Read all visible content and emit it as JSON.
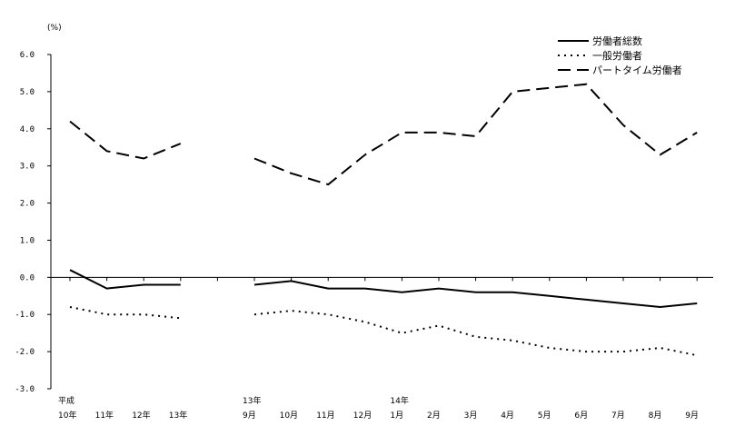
{
  "chart_data": {
    "type": "line",
    "unit_label": "(%)",
    "ylim": [
      -3.0,
      6.0
    ],
    "yticks": [
      "6.0",
      "5.0",
      "4.0",
      "3.0",
      "2.0",
      "1.0",
      "0.0",
      "-1.0",
      "-2.0",
      "-3.0"
    ],
    "grid": false,
    "legend_position": "top-right",
    "categories": [
      {
        "top": "平成",
        "bottom": "10年"
      },
      {
        "top": "",
        "bottom": "11年"
      },
      {
        "top": "",
        "bottom": "12年"
      },
      {
        "top": "",
        "bottom": "13年"
      },
      {
        "top": "",
        "bottom": ""
      },
      {
        "top": "13年",
        "bottom": "9月"
      },
      {
        "top": "",
        "bottom": "10月"
      },
      {
        "top": "",
        "bottom": "11月"
      },
      {
        "top": "",
        "bottom": "12月"
      },
      {
        "top": "14年",
        "bottom": "1月"
      },
      {
        "top": "",
        "bottom": "2月"
      },
      {
        "top": "",
        "bottom": "3月"
      },
      {
        "top": "",
        "bottom": "4月"
      },
      {
        "top": "",
        "bottom": "5月"
      },
      {
        "top": "",
        "bottom": "6月"
      },
      {
        "top": "",
        "bottom": "7月"
      },
      {
        "top": "",
        "bottom": "8月"
      },
      {
        "top": "",
        "bottom": "9月"
      }
    ],
    "series": [
      {
        "name": "労働者総数",
        "style": "solid",
        "values": [
          0.2,
          -0.3,
          -0.2,
          -0.2,
          null,
          -0.2,
          -0.1,
          -0.3,
          -0.3,
          -0.4,
          -0.3,
          -0.4,
          -0.4,
          -0.5,
          -0.6,
          -0.7,
          -0.8,
          -0.7
        ]
      },
      {
        "name": "一般労働者",
        "style": "dotted",
        "values": [
          -0.8,
          -1.0,
          -1.0,
          -1.1,
          null,
          -1.0,
          -0.9,
          -1.0,
          -1.2,
          -1.5,
          -1.3,
          -1.6,
          -1.7,
          -1.9,
          -2.0,
          -2.0,
          -1.9,
          -2.1
        ]
      },
      {
        "name": "パートタイム労働者",
        "style": "dashed",
        "values": [
          4.2,
          3.4,
          3.2,
          3.6,
          null,
          3.2,
          2.8,
          2.5,
          3.3,
          3.9,
          3.9,
          3.8,
          5.0,
          5.1,
          5.2,
          4.1,
          3.3,
          3.9
        ]
      }
    ]
  }
}
